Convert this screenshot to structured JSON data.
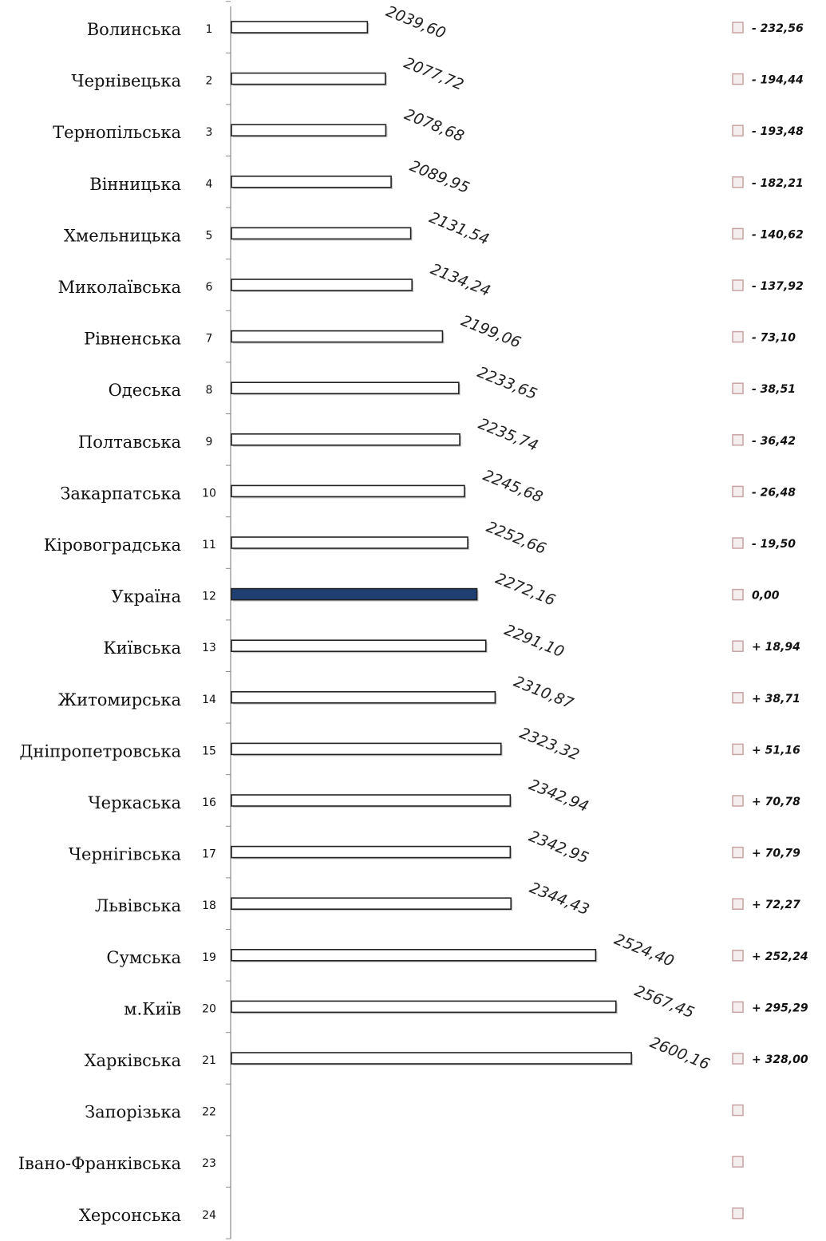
{
  "chart_data": {
    "type": "bar",
    "orientation": "horizontal",
    "title": "",
    "xlabel": "",
    "ylabel": "",
    "highlight_color": "#1F3F73",
    "bar_fill": "#ffffff",
    "marker_color": "#C9A3A3",
    "categories": [
      "Волинська",
      "Чернівецька",
      "Тернопільська",
      "Вінницька",
      "Хмельницька",
      "Миколаївська",
      "Рівненська",
      "Одеська",
      "Полтавська",
      "Закарпатська",
      "Кіровоградська",
      "Україна",
      "Київська",
      "Житомирська",
      "Дніпропетровська",
      "Черкаська",
      "Чернігівська",
      "Львівська",
      "Сумська",
      "м.Київ",
      "Харківська",
      "Запорізька",
      "Івано-Франківська",
      "Херсонська"
    ],
    "ranks": [
      "1",
      "2",
      "3",
      "4",
      "5",
      "6",
      "7",
      "8",
      "9",
      "10",
      "11",
      "12",
      "13",
      "14",
      "15",
      "16",
      "17",
      "18",
      "19",
      "20",
      "21",
      "22",
      "23",
      "24"
    ],
    "values": [
      2039.6,
      2077.72,
      2078.68,
      2089.95,
      2131.54,
      2134.24,
      2199.06,
      2233.65,
      2235.74,
      2245.68,
      2252.66,
      2272.16,
      2291.1,
      2310.87,
      2323.32,
      2342.94,
      2342.95,
      2344.43,
      2524.4,
      2567.45,
      2600.16,
      null,
      null,
      null
    ],
    "value_labels": [
      "2039,60",
      "2077,72",
      "2078,68",
      "2089,95",
      "2131,54",
      "2134,24",
      "2199,06",
      "2233,65",
      "2235,74",
      "2245,68",
      "2252,66",
      "2272,16",
      "2291,10",
      "2310,87",
      "2323,32",
      "2342,94",
      "2342,95",
      "2344,43",
      "2524,40",
      "2567,45",
      "2600,16",
      "",
      "",
      ""
    ],
    "difference_labels": [
      "- 232,56",
      "- 194,44",
      "- 193,48",
      "- 182,21",
      "- 140,62",
      "- 137,92",
      "- 73,10",
      "- 38,51",
      "- 36,42",
      "- 26,48",
      "- 19,50",
      "0,00",
      "+ 18,94",
      "+ 38,71",
      "+ 51,16",
      "+ 70,78",
      "+ 70,79",
      "+ 72,27",
      "+ 252,24",
      "+ 295,29",
      "+ 328,00",
      "",
      "",
      ""
    ],
    "highlight_category": "Україна"
  }
}
